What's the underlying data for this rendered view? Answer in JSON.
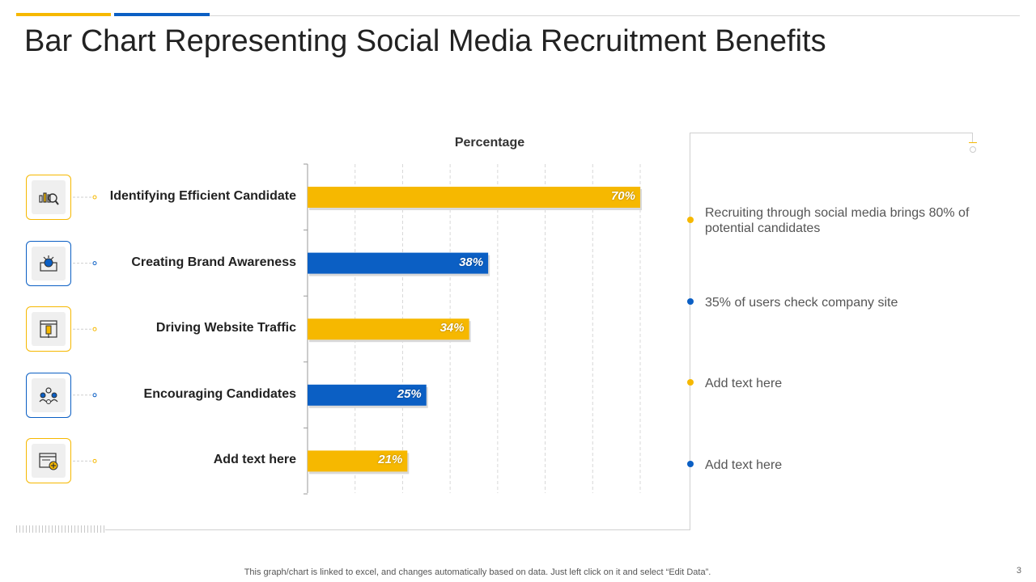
{
  "slide": {
    "title": "Bar Chart Representing Social Media Recruitment Benefits",
    "footer": "This graph/chart is linked to excel, and changes automatically based on data. Just left click on it and select “Edit Data”.",
    "page_number": "3"
  },
  "colors": {
    "yellow": "#f6b800",
    "blue": "#0b5fc4"
  },
  "chart_data": {
    "type": "bar",
    "orientation": "horizontal",
    "title": "Percentage",
    "categories": [
      "Identifying Efficient Candidate",
      "Creating Brand Awareness",
      "Driving Website Traffic",
      "Encouraging Candidates",
      "Add text here"
    ],
    "values": [
      70,
      38,
      34,
      25,
      21
    ],
    "value_labels": [
      "70%",
      "38%",
      "34%",
      "25%",
      "21%"
    ],
    "bar_colors": [
      "#f6b800",
      "#0b5fc4",
      "#f6b800",
      "#0b5fc4",
      "#f6b800"
    ],
    "xlim": [
      0,
      70
    ],
    "grid": true
  },
  "icons": [
    {
      "name": "chart-search-icon",
      "color": "#f6b800"
    },
    {
      "name": "megaphone-icon",
      "color": "#0b5fc4"
    },
    {
      "name": "web-page-icon",
      "color": "#f6b800"
    },
    {
      "name": "team-icon",
      "color": "#0b5fc4"
    },
    {
      "name": "add-window-icon",
      "color": "#f6b800"
    }
  ],
  "notes": [
    {
      "text": "Recruiting through  social media brings 80% of potential candidates",
      "color": "#f6b800"
    },
    {
      "text": "35% of users check company site",
      "color": "#0b5fc4"
    },
    {
      "text": "Add text here",
      "color": "#f6b800"
    },
    {
      "text": "Add text here",
      "color": "#0b5fc4"
    }
  ]
}
